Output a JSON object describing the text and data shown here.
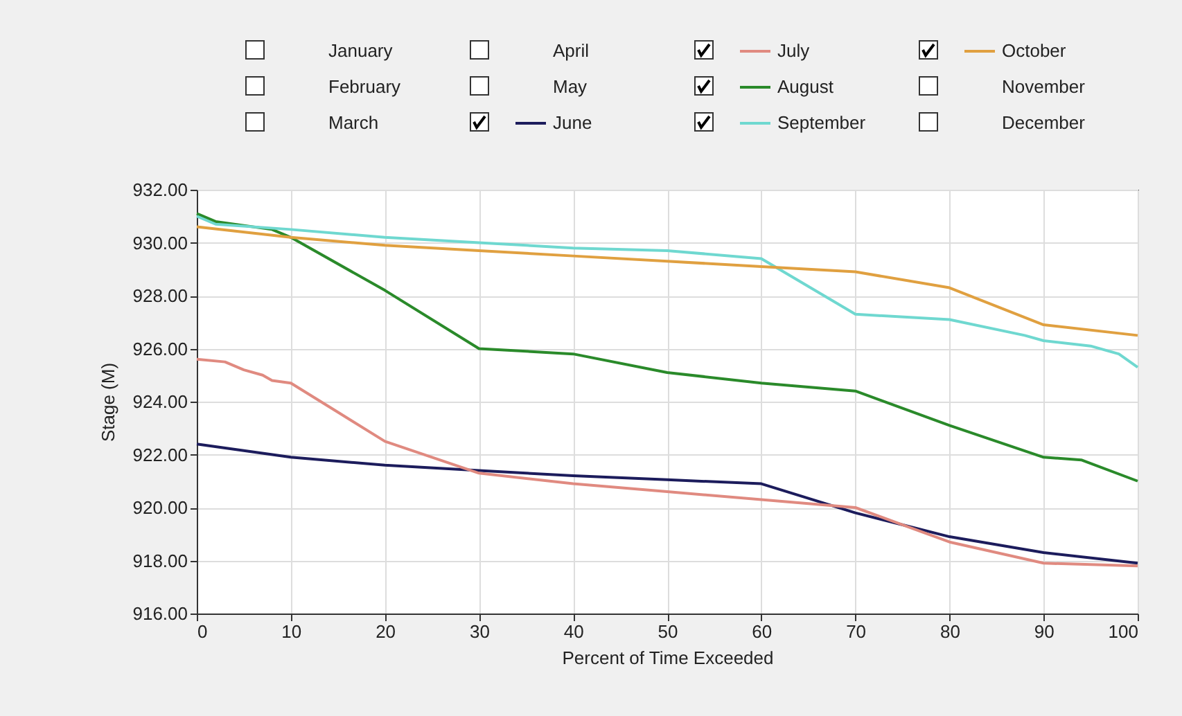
{
  "chart_data": {
    "type": "line",
    "xlabel": "Percent of Time Exceeded",
    "ylabel": "Stage (M)",
    "xlim": [
      0,
      100
    ],
    "xticks": [
      0,
      10,
      20,
      30,
      40,
      50,
      60,
      70,
      80,
      90,
      100
    ],
    "ylim": [
      916,
      932
    ],
    "yticks": [
      {
        "value": 916,
        "label": "916.00"
      },
      {
        "value": 918,
        "label": "918.00"
      },
      {
        "value": 920,
        "label": "920.00"
      },
      {
        "value": 922,
        "label": "922.00"
      },
      {
        "value": 924,
        "label": "924.00"
      },
      {
        "value": 926,
        "label": "926.00"
      },
      {
        "value": 928,
        "label": "928.00"
      },
      {
        "value": 930,
        "label": "930.00"
      },
      {
        "value": 932,
        "label": "932.00"
      }
    ],
    "grid": true,
    "legend": "top",
    "marker": "none",
    "line_style": "solid",
    "series": [
      {
        "name": "January"
      },
      {
        "name": "February"
      },
      {
        "name": "March"
      },
      {
        "name": "April"
      },
      {
        "name": "May"
      },
      {
        "name": "June",
        "color": "#1c1c5c",
        "x": [
          0,
          10,
          20,
          30,
          40,
          50,
          60,
          70,
          80,
          90,
          100
        ],
        "values": [
          922.4,
          921.9,
          921.6,
          921.4,
          921.2,
          921.05,
          920.9,
          919.8,
          918.9,
          918.3,
          917.9
        ]
      },
      {
        "name": "July",
        "color": "#e08a80",
        "x": [
          0,
          3,
          5,
          7,
          8,
          10,
          15,
          20,
          25,
          30,
          40,
          50,
          60,
          70,
          80,
          90,
          100
        ],
        "values": [
          925.6,
          925.5,
          925.2,
          925.0,
          924.8,
          924.7,
          923.6,
          922.5,
          921.9,
          921.3,
          920.9,
          920.6,
          920.3,
          920.0,
          918.7,
          917.9,
          917.8
        ]
      },
      {
        "name": "August",
        "color": "#2a8a2a",
        "x": [
          0,
          2,
          8,
          10,
          20,
          30,
          40,
          50,
          60,
          70,
          80,
          90,
          94,
          100
        ],
        "values": [
          931.1,
          930.8,
          930.5,
          930.2,
          928.2,
          926.0,
          925.8,
          925.1,
          924.7,
          924.4,
          923.1,
          921.9,
          921.8,
          921.0
        ]
      },
      {
        "name": "September",
        "color": "#6fd8d0",
        "x": [
          0,
          2,
          10,
          20,
          30,
          40,
          50,
          60,
          70,
          80,
          88,
          90,
          95,
          98,
          100
        ],
        "values": [
          931.0,
          930.7,
          930.5,
          930.2,
          930.0,
          929.8,
          929.7,
          929.4,
          927.3,
          927.1,
          926.5,
          926.3,
          926.1,
          925.8,
          925.3
        ]
      },
      {
        "name": "October",
        "color": "#e0a040",
        "x": [
          0,
          10,
          20,
          30,
          40,
          50,
          60,
          70,
          80,
          90,
          100
        ],
        "values": [
          930.6,
          930.2,
          929.9,
          929.7,
          929.5,
          929.3,
          929.1,
          928.9,
          928.3,
          926.9,
          926.5
        ]
      },
      {
        "name": "November"
      },
      {
        "name": "December"
      }
    ]
  }
}
